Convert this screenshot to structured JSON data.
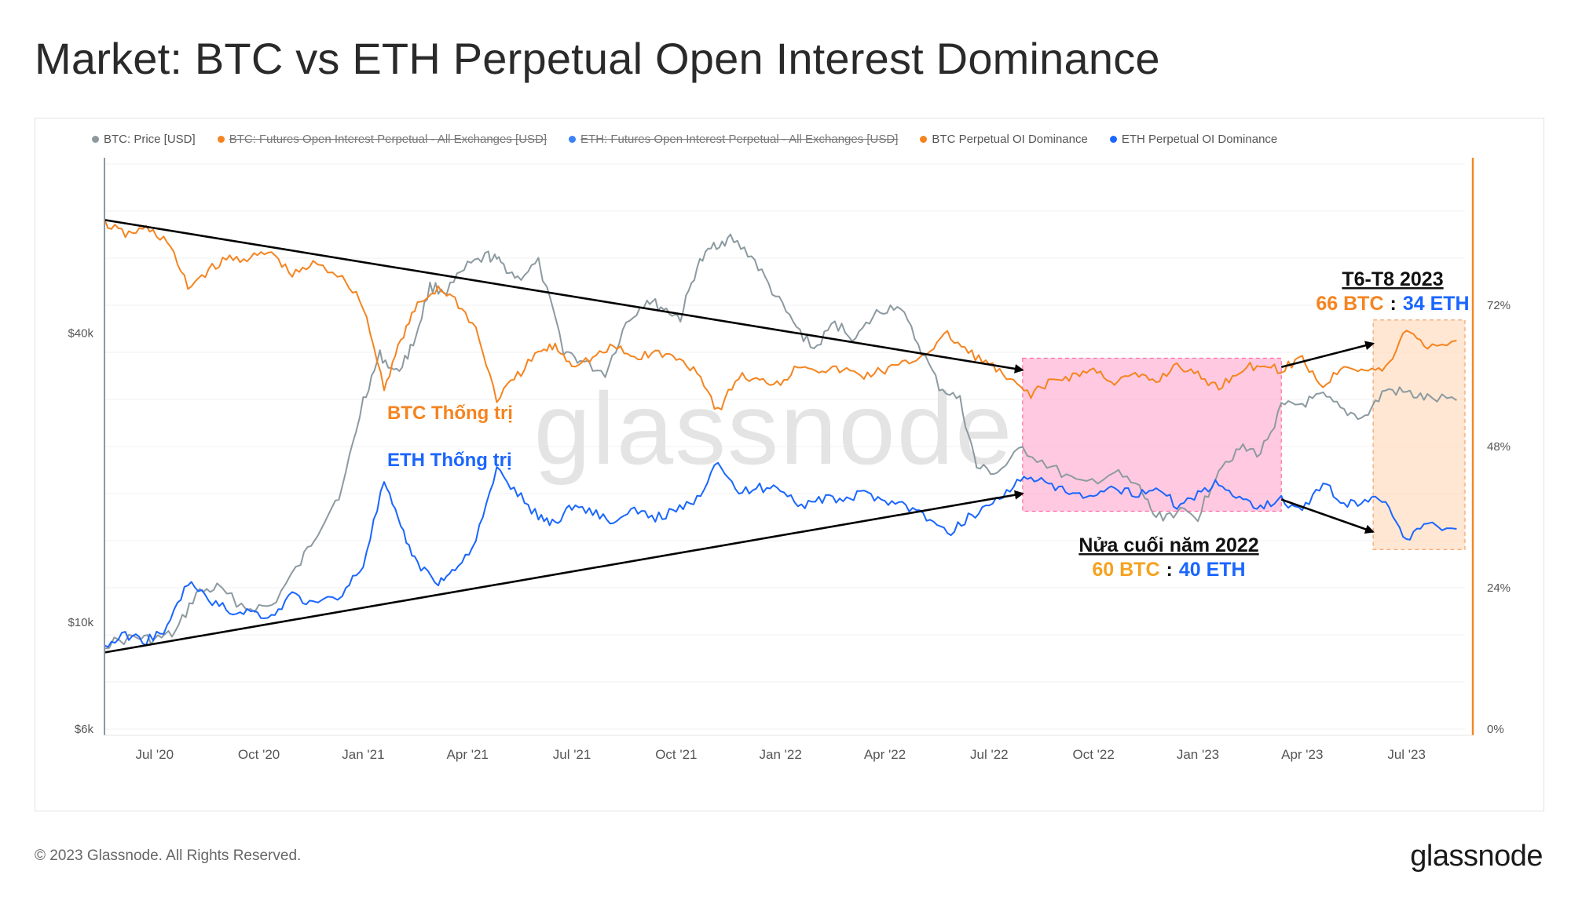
{
  "title": "Market: BTC vs ETH Perpetual Open Interest Dominance",
  "footer": "© 2023 Glassnode. All Rights Reserved.",
  "logo": "glassnode",
  "watermark": "glassnode",
  "colors": {
    "btc_price": "#8c9aa0",
    "btc_dom": "#f5841f",
    "eth_dom": "#1a66ff",
    "pink_zone": "#ff9fc8",
    "peach_zone": "#ffd3ae",
    "arrow": "#000000",
    "axis_right": "#f5841f"
  },
  "legend": [
    {
      "label": "BTC: Price [USD]",
      "color": "#8c9aa0",
      "active": true
    },
    {
      "label": "BTC: Futures Open Interest Perpetual - All Exchanges [USD]",
      "color": "#f5841f",
      "active": false
    },
    {
      "label": "ETH: Futures Open Interest Perpetual - All Exchanges [USD]",
      "color": "#3b82f6",
      "active": false
    },
    {
      "label": "BTC Perpetual OI Dominance",
      "color": "#f5841f",
      "active": true
    },
    {
      "label": "ETH Perpetual OI Dominance",
      "color": "#1a66ff",
      "active": true
    }
  ],
  "annotations": {
    "btc_label": "BTC Thống trị",
    "eth_label": "ETH Thống trị",
    "h2_title": "Nửa cuối năm 2022",
    "h2_btc": "60 BTC",
    "h2_sep": ":",
    "h2_eth": "40 ETH",
    "q3_title": "T6-T8 2023",
    "q3_btc": "66 BTC",
    "q3_sep": ":",
    "q3_eth": "34 ETH"
  },
  "chart_data": {
    "type": "line",
    "x_tick_labels": [
      "Jul '20",
      "Oct '20",
      "Jan '21",
      "Apr '21",
      "Jul '21",
      "Oct '21",
      "Jan '22",
      "Apr '22",
      "Jul '22",
      "Oct '22",
      "Jan '23",
      "Apr '23",
      "Jul '23"
    ],
    "x_start": 2020.38,
    "x_end": 2023.64,
    "left_axis": {
      "scale": "log",
      "ylim": [
        6000,
        90000
      ],
      "tick_labels": [
        "$6k",
        "$10k",
        "$40k"
      ],
      "tick_values": [
        6000,
        10000,
        40000
      ]
    },
    "right_axis": {
      "ylim": [
        0,
        96
      ],
      "tick_labels": [
        "0%",
        "24%",
        "48%",
        "72%"
      ],
      "tick_values": [
        0,
        24,
        48,
        72
      ]
    },
    "highlight_zones": [
      {
        "name": "H2 2022",
        "x_from": 2022.58,
        "x_to": 2023.2,
        "y_from": 37,
        "y_to": 63
      },
      {
        "name": "Jun-Aug 2023",
        "x_from": 2023.42,
        "x_to": 2023.64,
        "y_from": 30.5,
        "y_to": 69.5
      }
    ],
    "trend_arrows": [
      {
        "name": "btc-dominance-downtrend",
        "from": [
          2020.38,
          86.5
        ],
        "to": [
          2022.58,
          61
        ]
      },
      {
        "name": "eth-dominance-uptrend",
        "from": [
          2020.38,
          13
        ],
        "to": [
          2022.58,
          40
        ]
      },
      {
        "name": "btc-dominance-rise-2023",
        "from": [
          2023.2,
          61.5
        ],
        "to": [
          2023.42,
          65.5
        ]
      },
      {
        "name": "eth-dominance-fall-2023",
        "from": [
          2023.2,
          39
        ],
        "to": [
          2023.42,
          33.5
        ]
      }
    ],
    "series": [
      {
        "name": "BTC: Price [USD]",
        "axis": "left",
        "color": "#8c9aa0",
        "x": [
          2020.38,
          2020.45,
          2020.5,
          2020.55,
          2020.6,
          2020.65,
          2020.72,
          2020.78,
          2020.85,
          2020.9,
          2020.95,
          2021.0,
          2021.04,
          2021.08,
          2021.12,
          2021.16,
          2021.2,
          2021.25,
          2021.3,
          2021.33,
          2021.37,
          2021.42,
          2021.48,
          2021.52,
          2021.58,
          2021.63,
          2021.68,
          2021.72,
          2021.76,
          2021.8,
          2021.84,
          2021.88,
          2021.93,
          2021.98,
          2022.03,
          2022.08,
          2022.13,
          2022.18,
          2022.23,
          2022.28,
          2022.33,
          2022.38,
          2022.43,
          2022.47,
          2022.52,
          2022.58,
          2022.65,
          2022.72,
          2022.8,
          2022.86,
          2022.9,
          2022.95,
          2023.0,
          2023.05,
          2023.1,
          2023.15,
          2023.2,
          2023.25,
          2023.3,
          2023.35,
          2023.4,
          2023.45,
          2023.5,
          2023.55,
          2023.62
        ],
        "values": [
          9000,
          9300,
          9200,
          9500,
          11500,
          11800,
          10700,
          10800,
          13300,
          16000,
          19000,
          29000,
          36000,
          33000,
          38000,
          50000,
          49000,
          55000,
          58000,
          56000,
          52000,
          56000,
          37000,
          35000,
          33000,
          42000,
          47000,
          45000,
          43000,
          55000,
          61000,
          63000,
          58000,
          49000,
          42000,
          37000,
          42000,
          39000,
          44000,
          46000,
          38000,
          31000,
          29000,
          21000,
          20500,
          23000,
          21000,
          19300,
          20500,
          19000,
          16500,
          17000,
          16600,
          21000,
          23000,
          22500,
          28000,
          28500,
          29500,
          27500,
          26700,
          30500,
          30000,
          29200,
          29000
        ]
      },
      {
        "name": "BTC Perpetual OI Dominance",
        "axis": "right",
        "color": "#f5841f",
        "x": [
          2020.38,
          2020.43,
          2020.48,
          2020.53,
          2020.58,
          2020.63,
          2020.68,
          2020.73,
          2020.78,
          2020.83,
          2020.88,
          2020.95,
          2021.0,
          2021.05,
          2021.09,
          2021.13,
          2021.18,
          2021.22,
          2021.27,
          2021.32,
          2021.37,
          2021.42,
          2021.46,
          2021.5,
          2021.55,
          2021.6,
          2021.65,
          2021.7,
          2021.75,
          2021.8,
          2021.85,
          2021.9,
          2021.95,
          2022.0,
          2022.05,
          2022.1,
          2022.15,
          2022.2,
          2022.25,
          2022.3,
          2022.35,
          2022.4,
          2022.45,
          2022.5,
          2022.55,
          2022.6,
          2022.65,
          2022.7,
          2022.75,
          2022.8,
          2022.85,
          2022.9,
          2022.95,
          2023.0,
          2023.05,
          2023.1,
          2023.15,
          2023.2,
          2023.25,
          2023.3,
          2023.35,
          2023.4,
          2023.45,
          2023.5,
          2023.55,
          2023.62
        ],
        "values": [
          86,
          84,
          85,
          83,
          75,
          78,
          80,
          80,
          81,
          77,
          79,
          77,
          72,
          58,
          66,
          72,
          75,
          73,
          68,
          56,
          60,
          64,
          65,
          62,
          63,
          65,
          63,
          64,
          63,
          61,
          54,
          60,
          59,
          59,
          62,
          61,
          61,
          60,
          61,
          62,
          64,
          67,
          64,
          62,
          59,
          57,
          59,
          60,
          61,
          59,
          60,
          59,
          62,
          60,
          58,
          61,
          62,
          61,
          63,
          58,
          62,
          61,
          61,
          68,
          65,
          66
        ]
      },
      {
        "name": "ETH Perpetual OI Dominance",
        "axis": "right",
        "color": "#1a66ff",
        "x": [
          2020.38,
          2020.43,
          2020.48,
          2020.53,
          2020.58,
          2020.63,
          2020.68,
          2020.73,
          2020.78,
          2020.83,
          2020.88,
          2020.95,
          2021.0,
          2021.05,
          2021.09,
          2021.13,
          2021.18,
          2021.22,
          2021.27,
          2021.32,
          2021.37,
          2021.42,
          2021.46,
          2021.5,
          2021.55,
          2021.6,
          2021.65,
          2021.7,
          2021.75,
          2021.8,
          2021.85,
          2021.9,
          2021.95,
          2022.0,
          2022.05,
          2022.1,
          2022.15,
          2022.2,
          2022.25,
          2022.3,
          2022.35,
          2022.4,
          2022.45,
          2022.5,
          2022.55,
          2022.6,
          2022.65,
          2022.7,
          2022.75,
          2022.8,
          2022.85,
          2022.9,
          2022.95,
          2023.0,
          2023.05,
          2023.1,
          2023.15,
          2023.2,
          2023.25,
          2023.3,
          2023.35,
          2023.4,
          2023.45,
          2023.5,
          2023.55,
          2023.62
        ],
        "values": [
          14,
          16,
          15,
          17,
          25,
          22,
          20,
          20,
          19,
          23,
          21,
          23,
          28,
          42,
          34,
          28,
          25,
          27,
          32,
          44,
          40,
          36,
          35,
          38,
          37,
          35,
          37,
          36,
          37,
          39,
          46,
          40,
          41,
          41,
          38,
          39,
          39,
          40,
          39,
          38,
          36,
          33,
          36,
          38,
          41,
          43,
          41,
          40,
          39,
          41,
          40,
          41,
          38,
          40,
          42,
          39,
          38,
          39,
          37,
          42,
          38,
          39,
          39,
          32,
          35,
          34
        ]
      }
    ]
  }
}
